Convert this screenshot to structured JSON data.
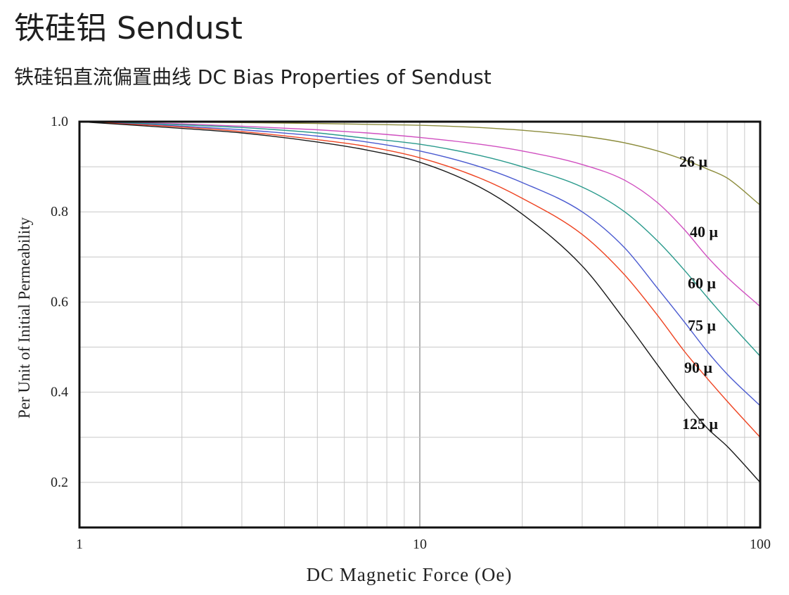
{
  "header": {
    "title": "铁硅铝 Sendust",
    "subtitle": "铁硅铝直流偏置曲线 DC Bias Properties of Sendust"
  },
  "chart_data": {
    "type": "line",
    "xlabel": "DC Magnetic Force (Oe)",
    "ylabel": "Per Unit of Initial Permeability",
    "x_scale": "log",
    "xlim": [
      1,
      100
    ],
    "ylim": [
      0.1,
      1.0
    ],
    "x_ticks": [
      1,
      10,
      100
    ],
    "x_tick_labels": [
      "1",
      "10",
      "100"
    ],
    "y_ticks": [
      1.0,
      0.8,
      0.6,
      0.4,
      0.2
    ],
    "y_tick_labels": [
      "1.0",
      "0.8",
      "0.6",
      "0.4",
      "0.2"
    ],
    "grid": true,
    "x": [
      1,
      2,
      3,
      5,
      7,
      10,
      15,
      20,
      30,
      40,
      50,
      60,
      70,
      80,
      100
    ],
    "series": [
      {
        "name": "26 μ",
        "color": "#8c8c3c",
        "values": [
          1.0,
          0.999,
          0.998,
          0.996,
          0.994,
          0.992,
          0.987,
          0.981,
          0.968,
          0.953,
          0.935,
          0.915,
          0.895,
          0.875,
          0.815
        ]
      },
      {
        "name": "40 μ",
        "color": "#d04fc0",
        "values": [
          1.0,
          0.995,
          0.99,
          0.982,
          0.975,
          0.965,
          0.95,
          0.935,
          0.905,
          0.87,
          0.82,
          0.76,
          0.7,
          0.655,
          0.59
        ]
      },
      {
        "name": "60 μ",
        "color": "#2a9a8c",
        "values": [
          1.0,
          0.993,
          0.987,
          0.975,
          0.963,
          0.95,
          0.925,
          0.9,
          0.855,
          0.8,
          0.735,
          0.67,
          0.61,
          0.56,
          0.48
        ]
      },
      {
        "name": "75 μ",
        "color": "#4a5ad0",
        "values": [
          1.0,
          0.99,
          0.982,
          0.968,
          0.955,
          0.935,
          0.9,
          0.865,
          0.8,
          0.72,
          0.63,
          0.555,
          0.49,
          0.44,
          0.37
        ]
      },
      {
        "name": "90 μ",
        "color": "#ee4422",
        "values": [
          1.0,
          0.988,
          0.978,
          0.96,
          0.945,
          0.92,
          0.875,
          0.83,
          0.75,
          0.66,
          0.57,
          0.49,
          0.43,
          0.38,
          0.3
        ]
      },
      {
        "name": "125 μ",
        "color": "#1a1a1a",
        "values": [
          1.0,
          0.985,
          0.975,
          0.955,
          0.937,
          0.91,
          0.855,
          0.795,
          0.68,
          0.56,
          0.46,
          0.38,
          0.32,
          0.28,
          0.2
        ]
      }
    ]
  }
}
